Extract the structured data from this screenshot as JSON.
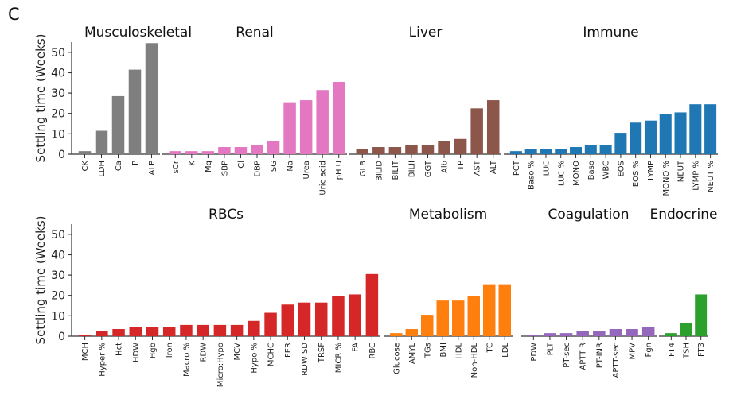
{
  "panel_letter": "C",
  "chart_data": {
    "type": "bar",
    "ylabel": "Settling time (Weeks)",
    "ylim": [
      0,
      55
    ],
    "yticks": [
      0,
      10,
      20,
      30,
      40,
      50
    ],
    "grid": false,
    "rows": [
      {
        "groups": [
          {
            "title": "Musculoskeletal",
            "color": "#7f7f7f",
            "categories": [
              "CK",
              "LDH",
              "Ca",
              "P",
              "ALP"
            ],
            "values": [
              1.5,
              11.5,
              28.5,
              41.5,
              54.5
            ]
          },
          {
            "title": "Renal",
            "color": "#e377c2",
            "categories": [
              "sCr",
              "K",
              "Mg",
              "SBP",
              "Cl",
              "DBP",
              "SG",
              "Na",
              "Urea",
              "Uric acid",
              "pH U"
            ],
            "values": [
              1.5,
              1.5,
              1.5,
              3.5,
              3.5,
              4.5,
              6.5,
              25.5,
              26.5,
              31.5,
              35.5
            ]
          },
          {
            "title": "Liver",
            "color": "#8c564b",
            "categories": [
              "GLB",
              "BILID",
              "BILIT",
              "BILII",
              "GGT",
              "Alb",
              "TP",
              "AST",
              "ALT"
            ],
            "values": [
              2.5,
              3.5,
              3.5,
              4.5,
              4.5,
              6.5,
              7.5,
              22.5,
              26.5
            ]
          },
          {
            "title": "Immune",
            "color": "#1f77b4",
            "categories": [
              "PCT",
              "Baso %",
              "LUC",
              "LUC %",
              "MONO",
              "Baso",
              "WBC",
              "EOS",
              "EOS %",
              "LYMP",
              "MONO %",
              "NEUT",
              "LYMP %",
              "NEUT %"
            ],
            "values": [
              1.5,
              2.5,
              2.5,
              2.5,
              3.5,
              4.5,
              4.5,
              10.5,
              15.5,
              16.5,
              19.5,
              20.5,
              24.5,
              24.5
            ]
          }
        ]
      },
      {
        "groups": [
          {
            "title": "RBCs",
            "color": "#d62728",
            "categories": [
              "MCH",
              "Hyper %",
              "Hct",
              "HDW",
              "Hgb",
              "Iron",
              "Macro %",
              "RDW",
              "Micro:Hypo",
              "MCV",
              "Hypo %",
              "MCHC",
              "FER",
              "RDW SD",
              "TRSF",
              "MICR %",
              "FA",
              "RBC"
            ],
            "values": [
              0.5,
              2.5,
              3.5,
              4.5,
              4.5,
              4.5,
              5.5,
              5.5,
              5.5,
              5.5,
              7.5,
              11.5,
              15.5,
              16.5,
              16.5,
              19.5,
              20.5,
              30.5
            ]
          },
          {
            "title": "Metabolism",
            "color": "#ff7f0e",
            "categories": [
              "Glucose",
              "AMYL",
              "TGs",
              "BMI",
              "HDL",
              "Non-HDL",
              "TC",
              "LDL"
            ],
            "values": [
              1.5,
              3.5,
              10.5,
              17.5,
              17.5,
              19.5,
              25.5,
              25.5
            ]
          },
          {
            "title": "Coagulation",
            "color": "#9467bd",
            "categories": [
              "PDW",
              "PLT",
              "PT-sec",
              "APTT-R",
              "PT-INR",
              "APTT-sec",
              "MPV",
              "Fgn"
            ],
            "values": [
              0.5,
              1.5,
              1.5,
              2.5,
              2.5,
              3.5,
              3.5,
              4.5
            ]
          },
          {
            "title": "Endocrine",
            "color": "#2ca02c",
            "categories": [
              "FT4",
              "TSH",
              "FT3"
            ],
            "values": [
              1.5,
              6.5,
              20.5
            ]
          }
        ]
      }
    ]
  }
}
